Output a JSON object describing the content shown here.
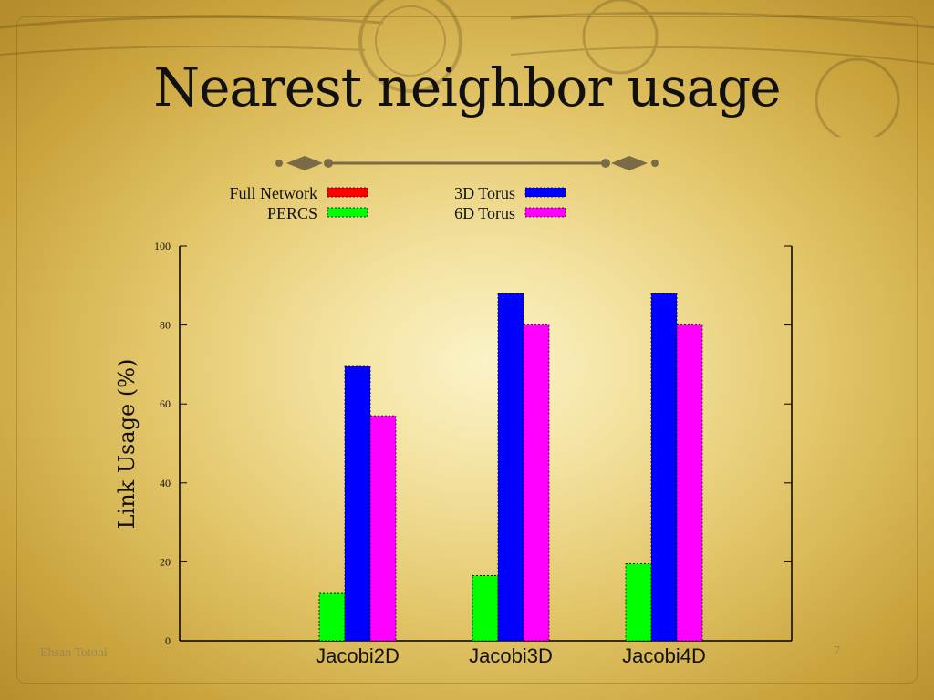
{
  "slide": {
    "title": "Nearest neighbor usage",
    "footer_author": "Ehsan Totoni",
    "page_number": "7"
  },
  "chart_data": {
    "type": "bar",
    "ylabel": "Link Usage (%)",
    "xlabel": "",
    "ylim": [
      0,
      100
    ],
    "yticks": [
      0,
      20,
      40,
      60,
      80,
      100
    ],
    "categories": [
      "Jacobi2D",
      "Jacobi3D",
      "Jacobi4D"
    ],
    "legend_position": "top",
    "series": [
      {
        "name": "Full Network",
        "color": "#ff0000",
        "values": [
          0,
          0,
          0
        ]
      },
      {
        "name": "PERCS",
        "color": "#00ff00",
        "values": [
          12,
          16.5,
          19.5
        ]
      },
      {
        "name": "3D Torus",
        "color": "#0000ff",
        "values": [
          69.5,
          88,
          88
        ]
      },
      {
        "name": "6D Torus",
        "color": "#ff00ff",
        "values": [
          57,
          80,
          80
        ]
      }
    ]
  }
}
